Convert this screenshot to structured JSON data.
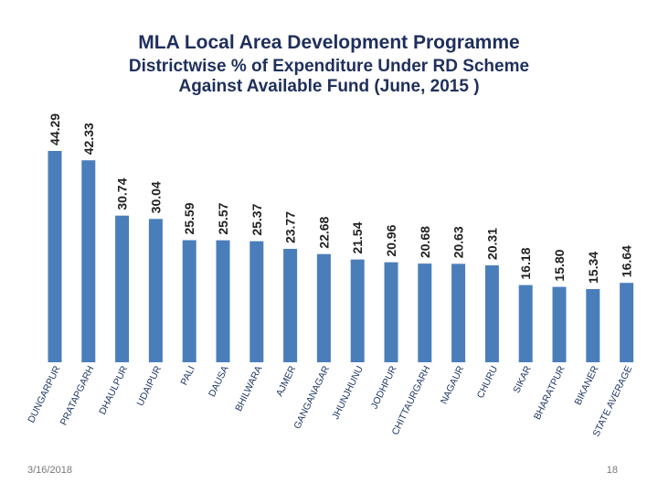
{
  "header": {
    "title": "MLA Local Area Development Programme",
    "subtitle_line1": "Districtwise % of Expenditure Under RD Scheme",
    "subtitle_line2": "Against  Available Fund (June, 2015 )"
  },
  "footer": {
    "date": "3/16/2018",
    "page": "18"
  },
  "colors": {
    "bar": "#4a7ebb",
    "title": "#1f2f5c"
  },
  "chart_data": {
    "type": "bar",
    "title": "Districtwise % of Expenditure Under RD Scheme Against  Available Fund (June, 2015 )",
    "xlabel": "",
    "ylabel": "",
    "ylim": [
      0,
      50
    ],
    "categories": [
      "DUNGARPUR",
      "PRATAPGARH",
      "DHAULPUR",
      "UDAIPUR",
      "PALI",
      "DAUSA",
      "BHILWARA",
      "AJMER",
      "GANGANAGAR",
      "JHUNJHUNU",
      "JODHPUR",
      "CHITTAURGARH",
      "NAGAUR",
      "CHURU",
      "SIKAR",
      "BHARATPUR",
      "BIKANER",
      "STATE AVERAGE"
    ],
    "values": [
      44.29,
      42.33,
      30.74,
      30.04,
      25.59,
      25.57,
      25.37,
      23.77,
      22.68,
      21.54,
      20.96,
      20.68,
      20.63,
      20.31,
      16.18,
      15.8,
      15.34,
      16.64
    ],
    "labels": [
      "44.29",
      "42.33",
      "30.74",
      "30.04",
      "25.59",
      "25.57",
      "25.37",
      "23.77",
      "22.68",
      "21.54",
      "20.96",
      "20.68",
      "20.63",
      "20.31",
      "16.18",
      "15.80",
      "15.34",
      "16.64"
    ]
  }
}
